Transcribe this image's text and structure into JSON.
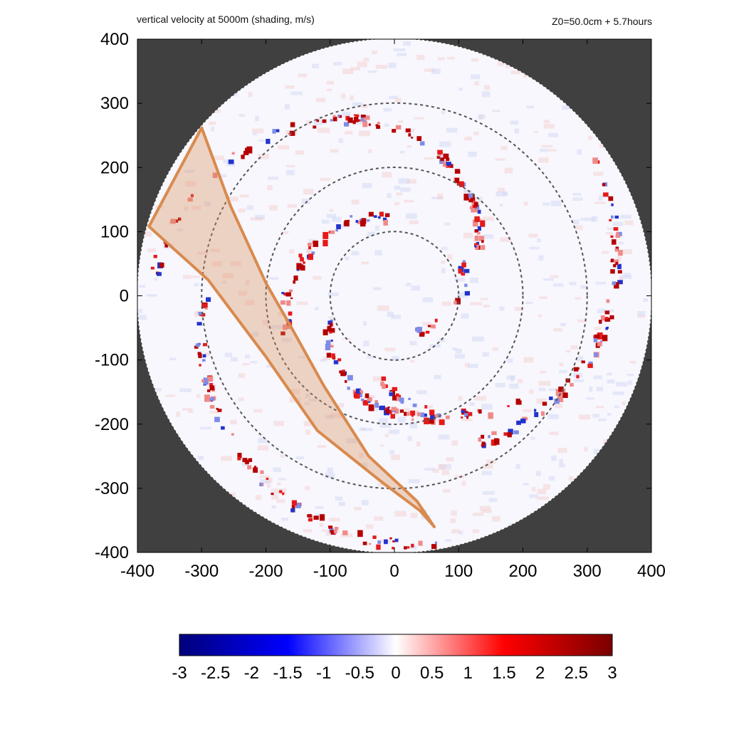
{
  "chart_data": {
    "type": "heatmap",
    "title": "vertical velocity at 5000m (shading, m/s)",
    "subtitle": "Z0=50.0cm  + 5.7hours",
    "xlabel": "",
    "ylabel": "",
    "xlim": [
      -400,
      400
    ],
    "ylim": [
      -400,
      400
    ],
    "x_ticks": [
      -400,
      -300,
      -200,
      -100,
      0,
      100,
      200,
      300,
      400
    ],
    "y_ticks": [
      -400,
      -300,
      -200,
      -100,
      0,
      100,
      200,
      300,
      400
    ],
    "grid": false,
    "domain_radius": 400,
    "range_rings": [
      100,
      200,
      300
    ],
    "colorbar": {
      "min": -3,
      "max": 3,
      "ticks": [
        "-3",
        "-2.5",
        "-2",
        "-1.5",
        "-1",
        "-0.5",
        "0",
        "0.5",
        "1",
        "1.5",
        "2",
        "2.5",
        "3"
      ],
      "colors": [
        "#00007a",
        "#0000ff",
        "#ffffff",
        "#ff0000",
        "#7a0000"
      ]
    },
    "outside_domain_color": "#404040",
    "band": {
      "color": "#d98a4e",
      "polygon": [
        [
          -300,
          262
        ],
        [
          -255,
          140
        ],
        [
          -200,
          20
        ],
        [
          -160,
          -50
        ],
        [
          -110,
          -140
        ],
        [
          -40,
          -250
        ],
        [
          35,
          -320
        ],
        [
          62,
          -360
        ],
        [
          40,
          -335
        ],
        [
          -20,
          -290
        ],
        [
          -120,
          -210
        ],
        [
          -200,
          -95
        ],
        [
          -290,
          25
        ],
        [
          -382,
          108
        ]
      ]
    }
  }
}
